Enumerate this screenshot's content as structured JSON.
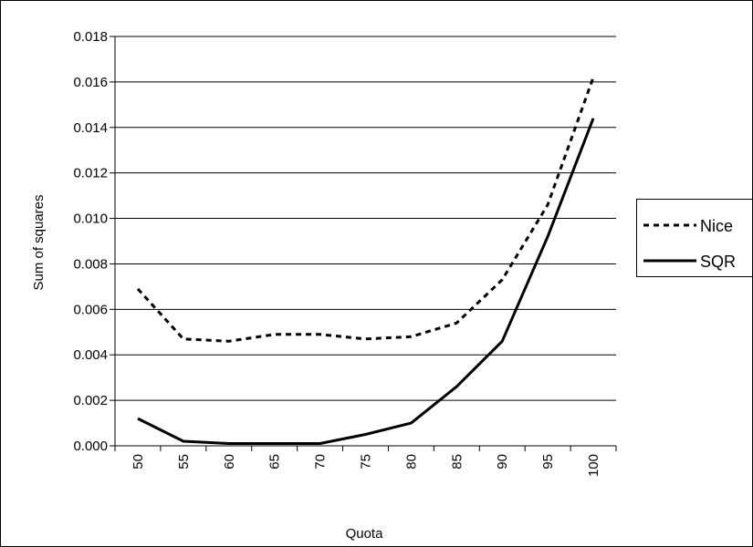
{
  "chart_data": {
    "type": "line",
    "xlabel": "Quota",
    "ylabel": "Sum of squares",
    "categories": [
      "50",
      "55",
      "60",
      "65",
      "70",
      "75",
      "80",
      "85",
      "90",
      "95",
      "100"
    ],
    "yticks": [
      "0.000",
      "0.002",
      "0.004",
      "0.006",
      "0.008",
      "0.010",
      "0.012",
      "0.014",
      "0.016",
      "0.018"
    ],
    "ylim": [
      0,
      0.018
    ],
    "grid": "horizontal",
    "legend_position": "right",
    "series": [
      {
        "name": "Nice",
        "style": "dashed",
        "values": [
          0.0069,
          0.0047,
          0.0046,
          0.0049,
          0.0049,
          0.0047,
          0.0048,
          0.0054,
          0.0073,
          0.0106,
          0.0162
        ]
      },
      {
        "name": "SQR",
        "style": "solid",
        "values": [
          0.0012,
          0.0002,
          0.0001,
          0.0001,
          0.0001,
          0.0005,
          0.001,
          0.0026,
          0.0046,
          0.0092,
          0.0144
        ]
      }
    ],
    "colors": {
      "line": "#000000",
      "grid": "#000000",
      "background": "#ffffff"
    }
  }
}
